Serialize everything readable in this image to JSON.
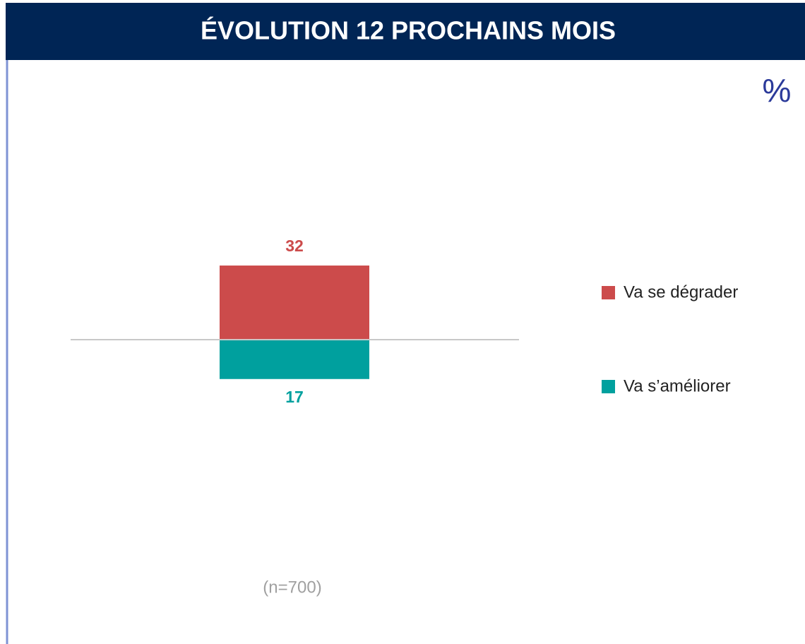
{
  "chart_data": {
    "type": "diverging_bar",
    "title": "ÉVOLUTION 12 PROCHAINS MOIS",
    "unit_label": "%",
    "categories": [
      null
    ],
    "series": [
      {
        "name": "Va se dégrader",
        "color": "#cc4b4b",
        "values": [
          32
        ]
      },
      {
        "name": "Va s’améliorer",
        "color": "#00a09e",
        "values": [
          17
        ]
      }
    ],
    "note": "(n=700)"
  }
}
